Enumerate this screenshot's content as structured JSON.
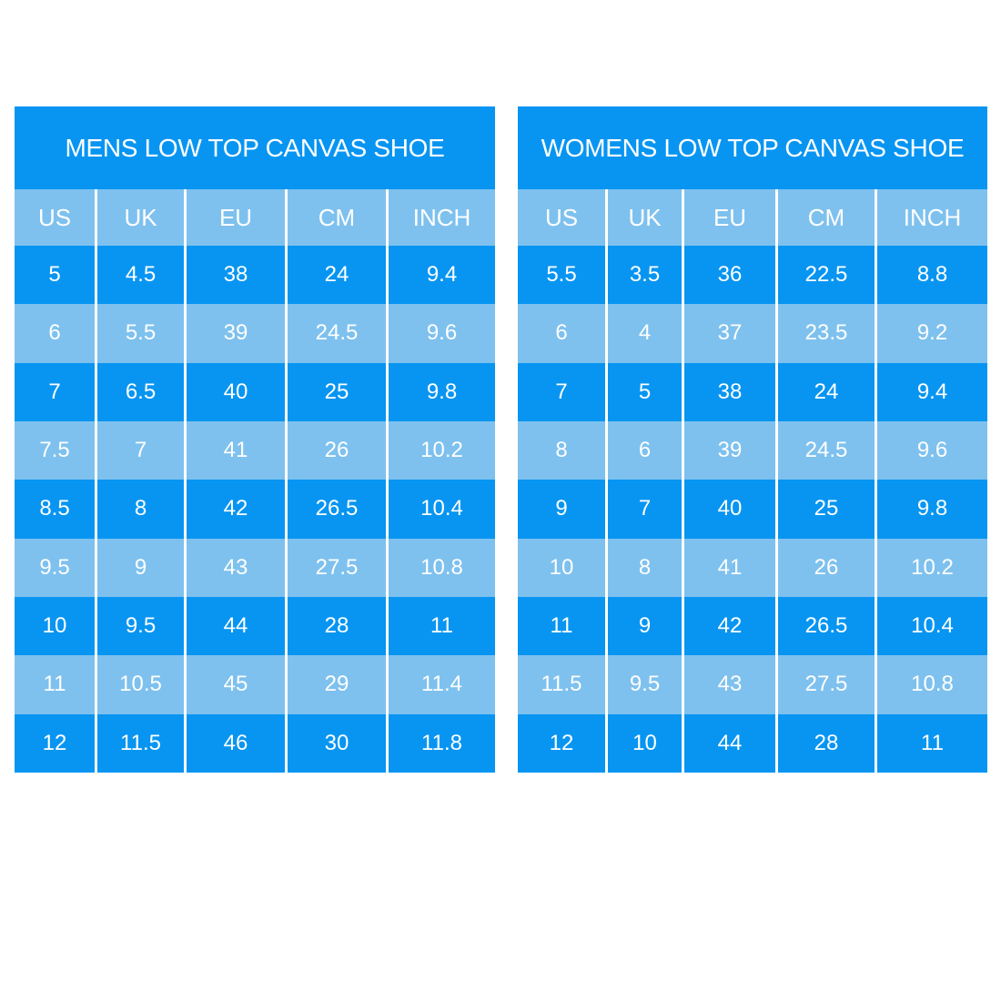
{
  "colors": {
    "dark_blue": "#0895f2",
    "light_blue": "#7ec1ee",
    "separator": "#ffffff",
    "text": "#ffffff",
    "page_background": "#ffffff"
  },
  "chart_data": [
    {
      "type": "table",
      "id": "mens",
      "title": "MENS LOW TOP CANVAS SHOE",
      "columns": [
        "US",
        "UK",
        "EU",
        "CM",
        "INCH"
      ],
      "rows": [
        [
          "5",
          "4.5",
          "38",
          "24",
          "9.4"
        ],
        [
          "6",
          "5.5",
          "39",
          "24.5",
          "9.6"
        ],
        [
          "7",
          "6.5",
          "40",
          "25",
          "9.8"
        ],
        [
          "7.5",
          "7",
          "41",
          "26",
          "10.2"
        ],
        [
          "8.5",
          "8",
          "42",
          "26.5",
          "10.4"
        ],
        [
          "9.5",
          "9",
          "43",
          "27.5",
          "10.8"
        ],
        [
          "10",
          "9.5",
          "44",
          "28",
          "11"
        ],
        [
          "11",
          "10.5",
          "45",
          "29",
          "11.4"
        ],
        [
          "12",
          "11.5",
          "46",
          "30",
          "11.8"
        ]
      ]
    },
    {
      "type": "table",
      "id": "womens",
      "title": "WOMENS LOW TOP CANVAS SHOE",
      "columns": [
        "US",
        "UK",
        "EU",
        "CM",
        "INCH"
      ],
      "rows": [
        [
          "5.5",
          "3.5",
          "36",
          "22.5",
          "8.8"
        ],
        [
          "6",
          "4",
          "37",
          "23.5",
          "9.2"
        ],
        [
          "7",
          "5",
          "38",
          "24",
          "9.4"
        ],
        [
          "8",
          "6",
          "39",
          "24.5",
          "9.6"
        ],
        [
          "9",
          "7",
          "40",
          "25",
          "9.8"
        ],
        [
          "10",
          "8",
          "41",
          "26",
          "10.2"
        ],
        [
          "11",
          "9",
          "42",
          "26.5",
          "10.4"
        ],
        [
          "11.5",
          "9.5",
          "43",
          "27.5",
          "10.8"
        ],
        [
          "12",
          "10",
          "44",
          "28",
          "11"
        ]
      ]
    }
  ]
}
